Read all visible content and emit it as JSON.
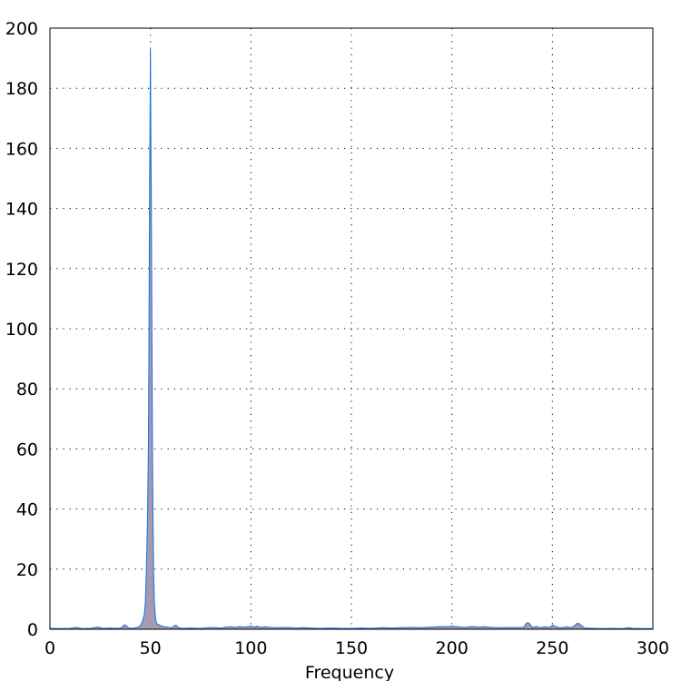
{
  "chart_data": {
    "type": "area",
    "title": "",
    "xlabel": "Frequency",
    "ylabel": "",
    "xlim": [
      0,
      300
    ],
    "ylim": [
      0,
      200
    ],
    "x_ticks": [
      0,
      50,
      100,
      150,
      200,
      250,
      300
    ],
    "y_ticks": [
      0,
      20,
      40,
      60,
      80,
      100,
      120,
      140,
      160,
      180,
      200
    ],
    "grid": true,
    "colors": {
      "line": "#1f77e0",
      "fill": "#a79ab0"
    },
    "series": [
      {
        "x": [
          0,
          5,
          10,
          13,
          16,
          20,
          24,
          25,
          26,
          30,
          34,
          36,
          37,
          38,
          39,
          40,
          42,
          44,
          45,
          46,
          47,
          47.5,
          48,
          48.5,
          49,
          49.3,
          49.6,
          49.8,
          50,
          50.2,
          50.4,
          50.6,
          50.8,
          51,
          51.3,
          51.6,
          52,
          52.5,
          53,
          54,
          55,
          57,
          59,
          61,
          62,
          63,
          64,
          66,
          70,
          75,
          80,
          85,
          88,
          90,
          92,
          94,
          96,
          98,
          100,
          102,
          103,
          105,
          107,
          110,
          114,
          118,
          122,
          126,
          130,
          135,
          140,
          145,
          150,
          155,
          160,
          165,
          170,
          175,
          180,
          185,
          190,
          195,
          198,
          200,
          203,
          206,
          210,
          213,
          216,
          220,
          225,
          230,
          234,
          236,
          237,
          238,
          239,
          240,
          242,
          244,
          246,
          248,
          249,
          250,
          251,
          253,
          255,
          257,
          259,
          260,
          261,
          262,
          263,
          264,
          266,
          270,
          275,
          280,
          285,
          288,
          290,
          295,
          300
        ],
        "y": [
          0.3,
          0.2,
          0.3,
          0.6,
          0.2,
          0.3,
          0.7,
          0.5,
          0.3,
          0.4,
          0.3,
          0.6,
          1.5,
          1.2,
          0.5,
          0.3,
          0.4,
          0.7,
          1.2,
          2.5,
          5,
          9,
          20,
          35,
          60,
          98,
          150,
          167,
          193,
          165,
          148,
          120,
          90,
          60,
          35,
          18,
          8,
          4,
          2,
          1.5,
          1.2,
          0.8,
          0.6,
          0.5,
          1.3,
          1.2,
          0.5,
          0.3,
          0.4,
          0.3,
          0.6,
          0.4,
          0.7,
          0.8,
          0.6,
          0.9,
          0.7,
          0.8,
          1.0,
          0.7,
          1.0,
          0.6,
          0.8,
          0.6,
          0.5,
          0.6,
          0.4,
          0.5,
          0.4,
          0.3,
          0.4,
          0.3,
          0.3,
          0.4,
          0.3,
          0.5,
          0.4,
          0.5,
          0.6,
          0.5,
          0.7,
          0.9,
          0.8,
          1.0,
          0.8,
          0.6,
          0.9,
          0.7,
          0.8,
          0.6,
          0.5,
          0.6,
          0.5,
          0.8,
          2.0,
          2.2,
          1.5,
          0.6,
          0.9,
          0.5,
          0.8,
          0.6,
          0.7,
          1.3,
          1.1,
          0.6,
          0.5,
          0.8,
          0.6,
          0.7,
          1.2,
          1.8,
          2.0,
          1.5,
          0.4,
          0.3,
          0.2,
          0.3,
          0.2,
          0.5,
          0.3,
          0.2,
          0.2
        ]
      }
    ]
  }
}
